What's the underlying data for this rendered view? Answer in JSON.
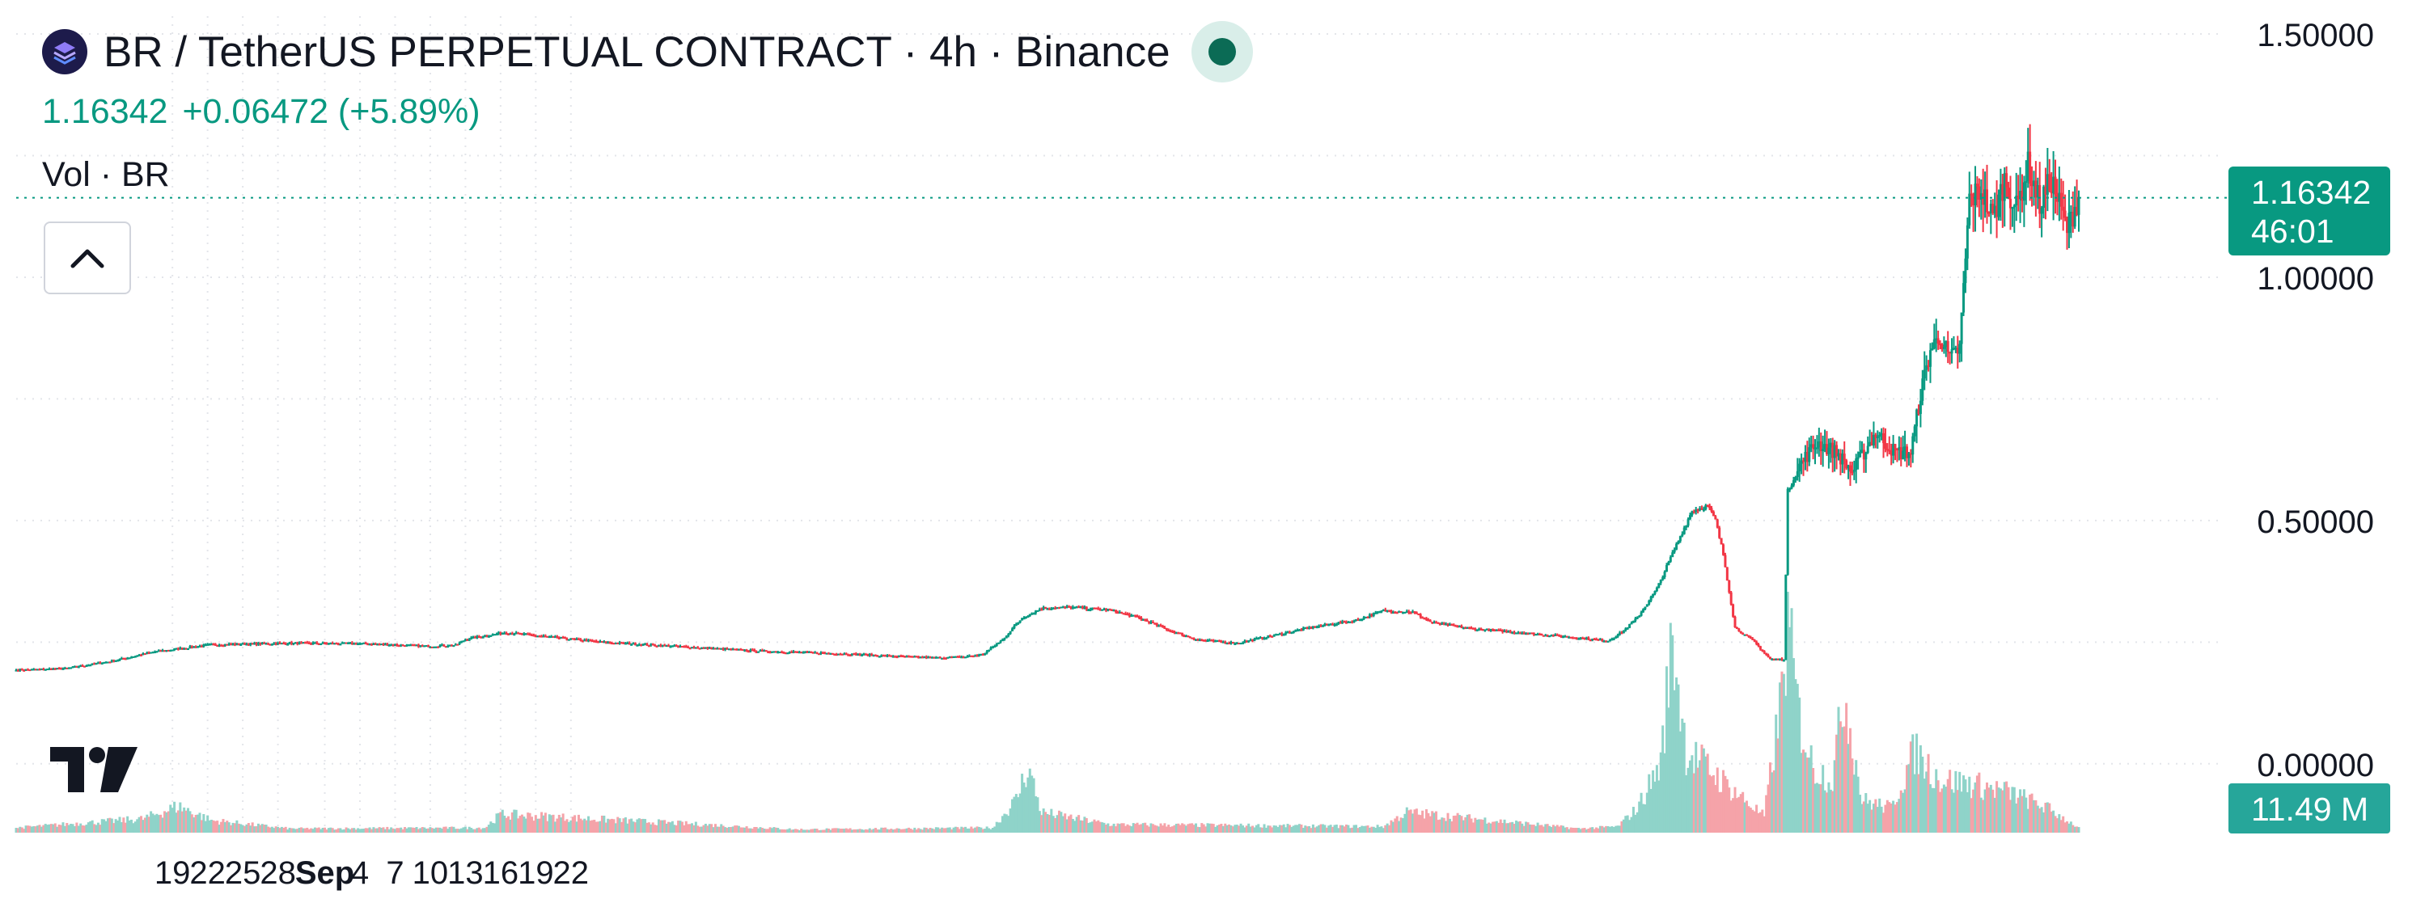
{
  "header": {
    "title": "BR / TetherUS PERPETUAL CONTRACT · 4h · Binance",
    "last_price": "1.16342",
    "change": "+0.06472 (+5.89%)",
    "volume_label": "Vol · BR"
  },
  "price_tag": {
    "price": "1.16342",
    "countdown": "46:01"
  },
  "volume_tag": "11.49 M",
  "colors": {
    "up": "#089981",
    "down": "#f23645",
    "up_volume": "#8fd3c9",
    "down_volume": "#f5a3a9"
  },
  "icons": {
    "logo": "bedrock-logo-icon",
    "status": "market-open-dot-icon",
    "collapse": "chevron-up-icon",
    "brand": "tradingview-logo-icon"
  },
  "chart_data": {
    "type": "candlestick",
    "interval": "4h",
    "ylim": [
      -0.125,
      1.52
    ],
    "yticks": [
      {
        "v": 0.0,
        "label": "0.00000"
      },
      {
        "v": 0.5,
        "label": "0.50000"
      },
      {
        "v": 1.0,
        "label": "1.00000"
      },
      {
        "v": 1.5,
        "label": "1.50000"
      }
    ],
    "xlabels": [
      "19",
      "22",
      "25",
      "28",
      "Sep",
      "4",
      "7",
      "10",
      "13",
      "16",
      "19",
      "22"
    ],
    "xlabel_bold": "Sep",
    "last_price": 1.16342,
    "grid": true,
    "anchors": [
      [
        0,
        0.193
      ],
      [
        25,
        0.196
      ],
      [
        50,
        0.212
      ],
      [
        70,
        0.23
      ],
      [
        100,
        0.245
      ],
      [
        140,
        0.248
      ],
      [
        180,
        0.247
      ],
      [
        210,
        0.242
      ],
      [
        225,
        0.244
      ],
      [
        230,
        0.256
      ],
      [
        250,
        0.27
      ],
      [
        270,
        0.262
      ],
      [
        300,
        0.25
      ],
      [
        340,
        0.241
      ],
      [
        380,
        0.232
      ],
      [
        420,
        0.227
      ],
      [
        445,
        0.222
      ],
      [
        470,
        0.218
      ],
      [
        485,
        0.22
      ],
      [
        495,
        0.225
      ],
      [
        505,
        0.255
      ],
      [
        515,
        0.3
      ],
      [
        525,
        0.32
      ],
      [
        540,
        0.322
      ],
      [
        560,
        0.316
      ],
      [
        575,
        0.3
      ],
      [
        590,
        0.275
      ],
      [
        605,
        0.255
      ],
      [
        625,
        0.248
      ],
      [
        645,
        0.265
      ],
      [
        665,
        0.282
      ],
      [
        685,
        0.294
      ],
      [
        700,
        0.315
      ],
      [
        715,
        0.312
      ],
      [
        725,
        0.29
      ],
      [
        745,
        0.278
      ],
      [
        770,
        0.27
      ],
      [
        795,
        0.261
      ],
      [
        815,
        0.253
      ],
      [
        822,
        0.27
      ],
      [
        830,
        0.3
      ],
      [
        840,
        0.36
      ],
      [
        850,
        0.45
      ],
      [
        858,
        0.52
      ],
      [
        866,
        0.53
      ],
      [
        870,
        0.5
      ],
      [
        874,
        0.43
      ],
      [
        880,
        0.28
      ],
      [
        890,
        0.25
      ],
      [
        898,
        0.215
      ],
      [
        905,
        0.215
      ],
      [
        907,
        0.56
      ],
      [
        914,
        0.62
      ],
      [
        922,
        0.66
      ],
      [
        932,
        0.64
      ],
      [
        940,
        0.6
      ],
      [
        952,
        0.68
      ],
      [
        962,
        0.64
      ],
      [
        970,
        0.64
      ],
      [
        975,
        0.76
      ],
      [
        980,
        0.85
      ],
      [
        985,
        0.88
      ],
      [
        990,
        0.83
      ],
      [
        995,
        0.855
      ],
      [
        1000,
        1.16
      ],
      [
        1006,
        1.18
      ],
      [
        1012,
        1.12
      ],
      [
        1018,
        1.2
      ],
      [
        1024,
        1.14
      ],
      [
        1030,
        1.23
      ],
      [
        1036,
        1.15
      ],
      [
        1042,
        1.2
      ],
      [
        1050,
        1.1
      ],
      [
        1056,
        1.165
      ]
    ],
    "volume_peaks": [
      [
        0,
        0.012
      ],
      [
        65,
        0.034
      ],
      [
        83,
        0.065
      ],
      [
        100,
        0.03
      ],
      [
        140,
        0.01
      ],
      [
        240,
        0.012
      ],
      [
        248,
        0.045
      ],
      [
        270,
        0.04
      ],
      [
        400,
        0.008
      ],
      [
        500,
        0.012
      ],
      [
        512,
        0.08
      ],
      [
        518,
        0.162
      ],
      [
        525,
        0.05
      ],
      [
        560,
        0.02
      ],
      [
        700,
        0.015
      ],
      [
        712,
        0.05
      ],
      [
        800,
        0.01
      ],
      [
        820,
        0.015
      ],
      [
        830,
        0.06
      ],
      [
        842,
        0.17
      ],
      [
        848,
        0.48
      ],
      [
        855,
        0.2
      ],
      [
        866,
        0.16
      ],
      [
        875,
        0.12
      ],
      [
        885,
        0.08
      ],
      [
        895,
        0.04
      ],
      [
        903,
        0.3
      ],
      [
        907,
        0.5
      ],
      [
        913,
        0.28
      ],
      [
        920,
        0.16
      ],
      [
        930,
        0.13
      ],
      [
        936,
        0.35
      ],
      [
        945,
        0.08
      ],
      [
        960,
        0.06
      ],
      [
        972,
        0.2
      ],
      [
        985,
        0.13
      ],
      [
        1000,
        0.12
      ],
      [
        1020,
        0.1
      ],
      [
        1040,
        0.06
      ],
      [
        1056,
        0.012
      ]
    ],
    "volume_max": 50.0
  }
}
